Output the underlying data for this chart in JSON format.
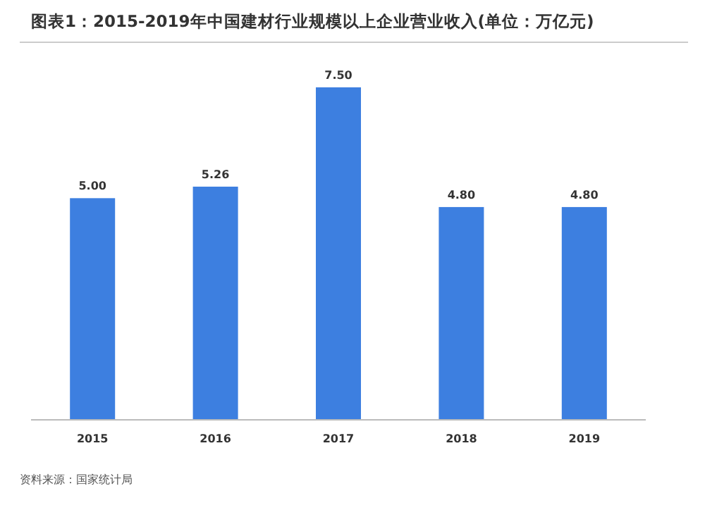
{
  "chart_data": {
    "type": "bar",
    "title": "图表1：2015-2019年中国建材行业规模以上企业营业收入(单位：万亿元)",
    "categories": [
      "2015",
      "2016",
      "2017",
      "2018",
      "2019"
    ],
    "values": [
      5.0,
      5.26,
      7.5,
      4.8,
      4.8
    ],
    "value_labels": [
      "5.00",
      "5.26",
      "7.50",
      "4.80",
      "4.80"
    ],
    "color": "#3d7fe0",
    "annotations": [
      "资料来源：国家统计局"
    ]
  }
}
